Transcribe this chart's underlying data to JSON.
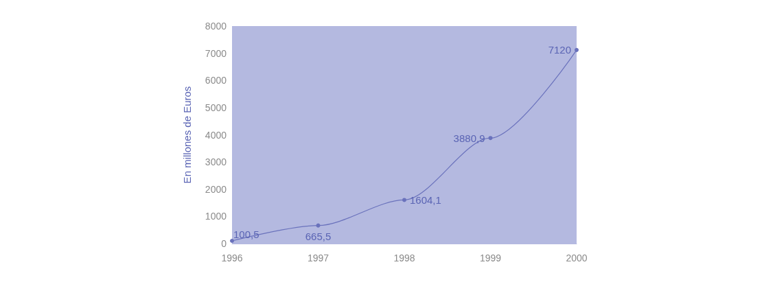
{
  "chart_data": {
    "type": "line",
    "ylabel": "En millones de Euros",
    "x": [
      1996,
      1997,
      1998,
      1999,
      2000
    ],
    "series": [
      {
        "color": "#6a72bc",
        "values": [
          100.5,
          665.5,
          1604.1,
          3880.9,
          7120
        ],
        "value_labels": [
          "100,5",
          "665,5",
          "1604,1",
          "3880,9",
          "7120"
        ]
      }
    ],
    "xlim": [
      1996,
      2000
    ],
    "xticks": [
      1996,
      1997,
      1998,
      1999,
      2000
    ],
    "ylim": [
      0,
      8000
    ],
    "yticks": [
      0,
      1000,
      2000,
      3000,
      4000,
      5000,
      6000,
      7000,
      8000
    ],
    "marker": "circle",
    "line_style": "solid"
  }
}
